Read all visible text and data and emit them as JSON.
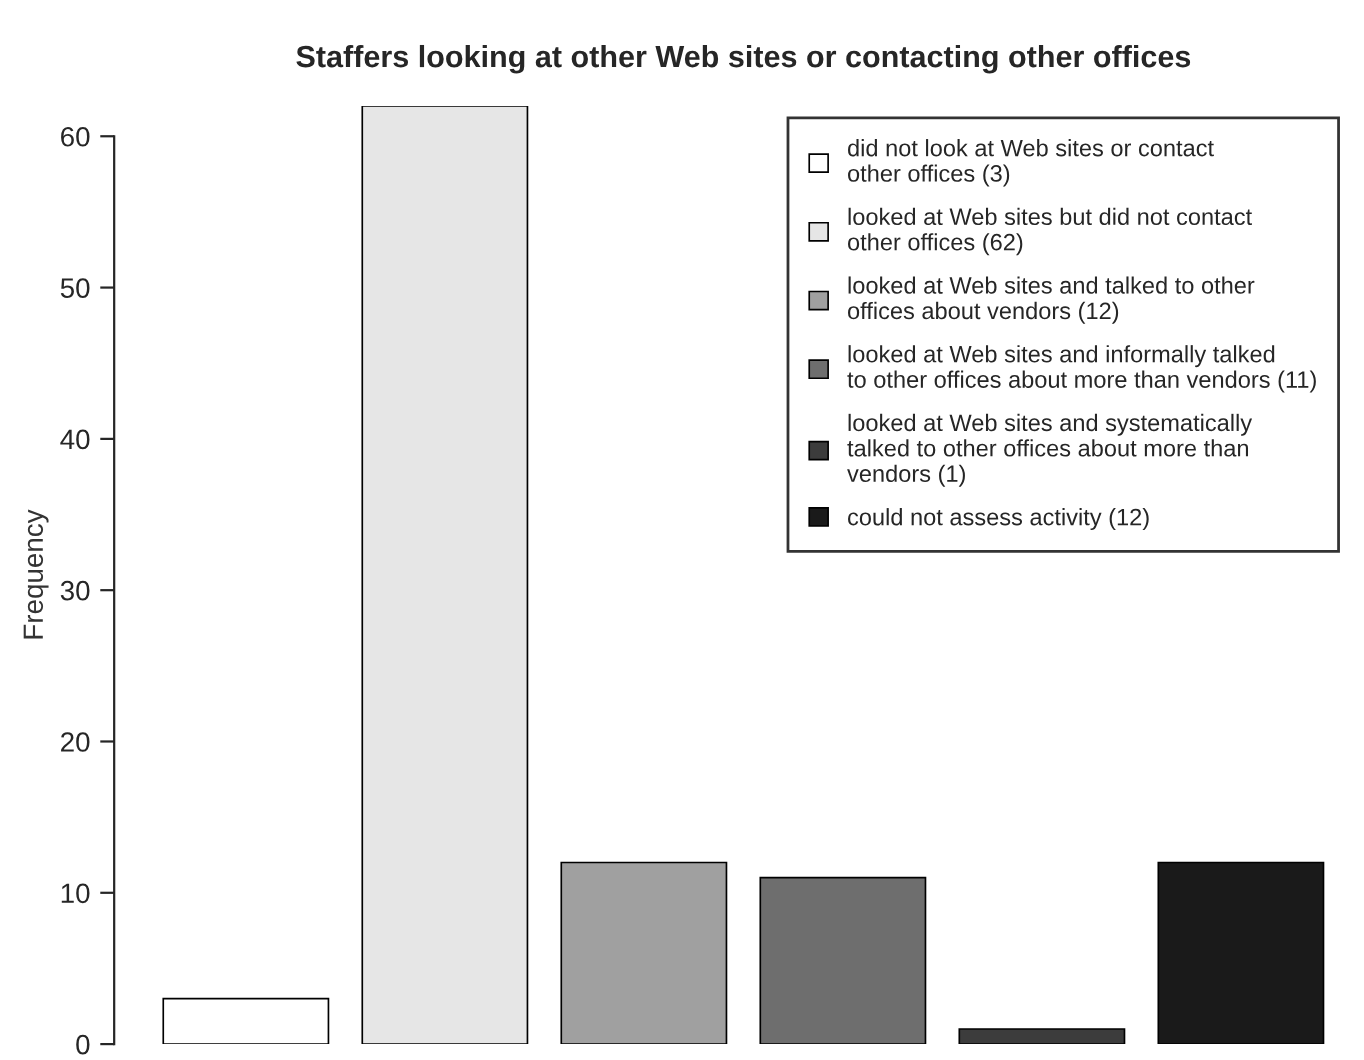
{
  "chart_data": {
    "type": "bar",
    "title": "Staffers looking at other Web sites or contacting other offices",
    "ylabel": "Frequency",
    "categories": [
      null,
      null,
      null,
      null,
      null,
      null
    ],
    "series": [
      {
        "name": "did not look at Web sites or contact\nother offices (3)",
        "color": "#ffffff",
        "values": [
          3,
          null,
          null,
          null,
          null,
          null
        ]
      },
      {
        "name": "looked at Web sites but did not contact\nother offices (62)",
        "color": "#e6e6e6",
        "values": [
          null,
          62,
          null,
          null,
          null,
          null
        ]
      },
      {
        "name": "looked at Web sites and talked to other\noffices about vendors (12)",
        "color": "#a0a0a0",
        "values": [
          null,
          null,
          12,
          null,
          null,
          null
        ]
      },
      {
        "name": "looked at Web sites and informally talked\nto other offices about more than vendors (11)",
        "color": "#6e6e6e",
        "values": [
          null,
          null,
          null,
          11,
          null,
          null
        ]
      },
      {
        "name": "looked at Web sites and systematically\ntalked to other offices about more than\nvendors (1)",
        "color": "#3c3c3c",
        "values": [
          null,
          null,
          null,
          null,
          1,
          null
        ]
      },
      {
        "name": "could not assess activity (12)",
        "color": "#1a1a1a",
        "values": [
          null,
          null,
          null,
          null,
          null,
          12
        ]
      }
    ],
    "ylim": [
      0,
      62
    ],
    "yticks": [
      0,
      10,
      20,
      30,
      40,
      50,
      60
    ],
    "stacked": true,
    "tick_labels": "y",
    "legend": "top right",
    "grid": false
  }
}
